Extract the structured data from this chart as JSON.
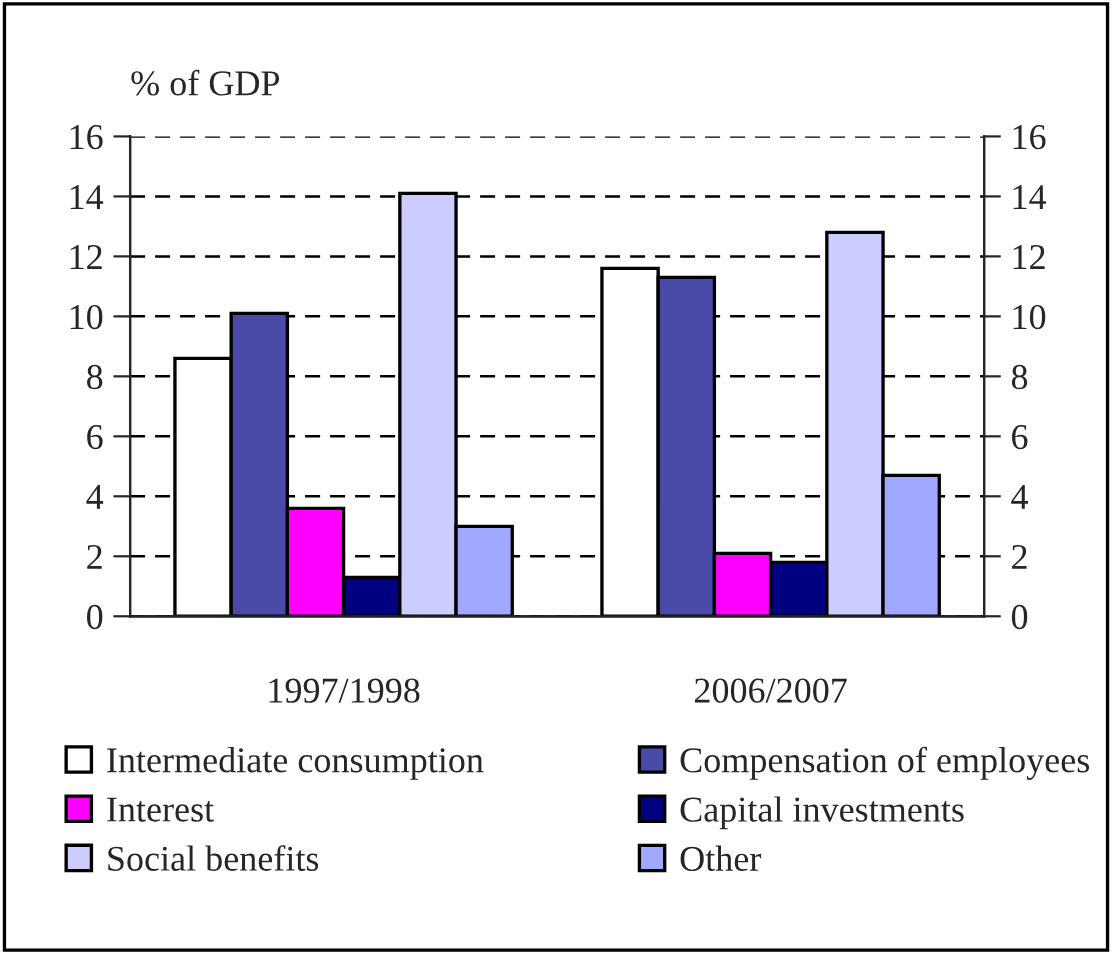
{
  "chart_data": {
    "type": "bar",
    "ylabel": "% of GDP",
    "categories": [
      "1997/1998",
      "2006/2007"
    ],
    "series": [
      {
        "name": "Intermediate consumption",
        "color": "#ffffff",
        "values": [
          8.6,
          11.6
        ]
      },
      {
        "name": "Compensation of employees",
        "color": "#4a4aa8",
        "values": [
          10.1,
          11.3
        ]
      },
      {
        "name": "Interest",
        "color": "#ff00ff",
        "values": [
          3.6,
          2.1
        ]
      },
      {
        "name": "Capital investments",
        "color": "#000080",
        "values": [
          1.3,
          1.8
        ]
      },
      {
        "name": "Social benefits",
        "color": "#ccccff",
        "values": [
          14.1,
          12.8
        ]
      },
      {
        "name": "Other",
        "color": "#a0a8ff",
        "values": [
          3.0,
          4.7
        ]
      }
    ],
    "ylim": [
      0,
      16
    ],
    "yticks": [
      0,
      2,
      4,
      6,
      8,
      10,
      12,
      14,
      16
    ],
    "y2lim": [
      0,
      16
    ],
    "y2ticks": [
      0,
      2,
      4,
      6,
      8,
      10,
      12,
      14,
      16
    ],
    "grid": "y",
    "legend": "bottom"
  }
}
